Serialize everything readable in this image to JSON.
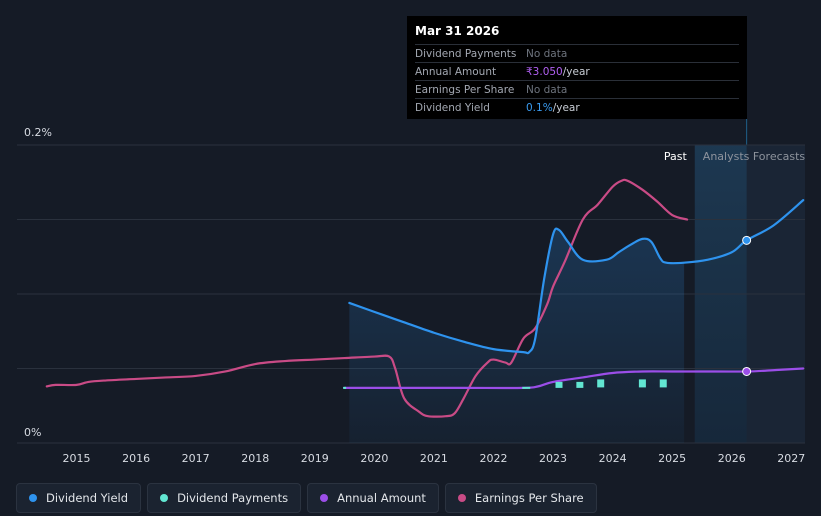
{
  "tooltip": {
    "date": "Mar 31 2026",
    "rows": [
      {
        "label": "Dividend Payments",
        "value": "No data",
        "unit": ""
      },
      {
        "label": "Annual Amount",
        "value": "₹3.050",
        "unit": "/year"
      },
      {
        "label": "Earnings Per Share",
        "value": "No data",
        "unit": ""
      },
      {
        "label": "Dividend Yield",
        "value": "0.1%",
        "unit": "/year"
      }
    ]
  },
  "legend": [
    {
      "label": "Dividend Yield",
      "color": "#2e93ee"
    },
    {
      "label": "Dividend Payments",
      "color": "#62e6d2"
    },
    {
      "label": "Annual Amount",
      "color": "#9b4ee8"
    },
    {
      "label": "Earnings Per Share",
      "color": "#c94b86"
    }
  ],
  "chart_data": {
    "type": "line",
    "title": "",
    "ylim": [
      0,
      0.2
    ],
    "y_tick_labels": [
      "0.2%",
      "0%"
    ],
    "xlim": [
      2014.0,
      2027.23
    ],
    "x_tick_labels": [
      "2015",
      "2016",
      "2017",
      "2018",
      "2019",
      "2020",
      "2021",
      "2022",
      "2023",
      "2024",
      "2025",
      "2026",
      "2027"
    ],
    "past_label": "Past",
    "forecast_label": "Analysts Forecasts",
    "past_end": 2025.38,
    "tooltip_x": 2026.25,
    "series": [
      {
        "name": "Dividend Yield",
        "color": "#2e93ee",
        "points": [
          [
            2019.58,
            0.094
          ],
          [
            2020.0,
            0.088
          ],
          [
            2020.5,
            0.081
          ],
          [
            2021.0,
            0.074
          ],
          [
            2021.5,
            0.068
          ],
          [
            2022.0,
            0.063
          ],
          [
            2022.5,
            0.061
          ],
          [
            2022.6,
            0.061
          ],
          [
            2022.7,
            0.07
          ],
          [
            2022.85,
            0.11
          ],
          [
            2023.0,
            0.14
          ],
          [
            2023.1,
            0.143
          ],
          [
            2023.25,
            0.135
          ],
          [
            2023.5,
            0.123
          ],
          [
            2023.9,
            0.123
          ],
          [
            2024.1,
            0.128
          ],
          [
            2024.3,
            0.133
          ],
          [
            2024.5,
            0.137
          ],
          [
            2024.65,
            0.135
          ],
          [
            2024.8,
            0.124
          ],
          [
            2024.9,
            0.121
          ],
          [
            2025.2,
            0.121
          ],
          [
            2025.6,
            0.123
          ],
          [
            2026.0,
            0.128
          ],
          [
            2026.25,
            0.136
          ],
          [
            2026.7,
            0.146
          ],
          [
            2027.2,
            0.163
          ]
        ],
        "forecast_from": 2025.38
      },
      {
        "name": "Annual Amount",
        "color": "#9b4ee8",
        "points": [
          [
            2019.5,
            0.037
          ],
          [
            2020.5,
            0.037
          ],
          [
            2021.5,
            0.037
          ],
          [
            2022.5,
            0.037
          ],
          [
            2022.75,
            0.038
          ],
          [
            2023.0,
            0.041
          ],
          [
            2023.5,
            0.044
          ],
          [
            2024.0,
            0.047
          ],
          [
            2024.5,
            0.048
          ],
          [
            2025.0,
            0.048
          ],
          [
            2025.5,
            0.048
          ],
          [
            2026.25,
            0.048
          ],
          [
            2026.75,
            0.049
          ],
          [
            2027.2,
            0.05
          ]
        ],
        "forecast_from": 2025.38
      },
      {
        "name": "Earnings Per Share",
        "color": "#c94b86",
        "points": [
          [
            2014.5,
            0.038
          ],
          [
            2014.65,
            0.039
          ],
          [
            2015.0,
            0.039
          ],
          [
            2015.2,
            0.041
          ],
          [
            2015.5,
            0.042
          ],
          [
            2016.0,
            0.043
          ],
          [
            2016.5,
            0.044
          ],
          [
            2017.0,
            0.045
          ],
          [
            2017.5,
            0.048
          ],
          [
            2018.0,
            0.053
          ],
          [
            2018.5,
            0.055
          ],
          [
            2019.0,
            0.056
          ],
          [
            2019.5,
            0.057
          ],
          [
            2020.0,
            0.058
          ],
          [
            2020.25,
            0.058
          ],
          [
            2020.35,
            0.05
          ],
          [
            2020.5,
            0.03
          ],
          [
            2020.75,
            0.021
          ],
          [
            2020.9,
            0.018
          ],
          [
            2021.2,
            0.018
          ],
          [
            2021.35,
            0.02
          ],
          [
            2021.5,
            0.03
          ],
          [
            2021.7,
            0.045
          ],
          [
            2021.9,
            0.054
          ],
          [
            2022.0,
            0.056
          ],
          [
            2022.2,
            0.054
          ],
          [
            2022.3,
            0.054
          ],
          [
            2022.5,
            0.07
          ],
          [
            2022.7,
            0.077
          ],
          [
            2022.9,
            0.093
          ],
          [
            2023.0,
            0.105
          ],
          [
            2023.2,
            0.122
          ],
          [
            2023.5,
            0.15
          ],
          [
            2023.75,
            0.16
          ],
          [
            2024.0,
            0.172
          ],
          [
            2024.15,
            0.176
          ],
          [
            2024.25,
            0.176
          ],
          [
            2024.5,
            0.17
          ],
          [
            2024.75,
            0.162
          ],
          [
            2025.0,
            0.153
          ],
          [
            2025.25,
            0.15
          ]
        ],
        "forecast_from": null
      }
    ],
    "dividend_payments": [
      {
        "x": 2019.5,
        "y": 0.037
      },
      {
        "x": 2022.55,
        "y": 0.037
      },
      {
        "x": 2023.1,
        "y": 0.039
      },
      {
        "x": 2023.45,
        "y": 0.039
      },
      {
        "x": 2023.8,
        "y": 0.04
      },
      {
        "x": 2024.5,
        "y": 0.04
      },
      {
        "x": 2024.85,
        "y": 0.04
      }
    ],
    "markers": [
      {
        "series": "Dividend Yield",
        "x": 2026.25,
        "y": 0.136
      },
      {
        "series": "Annual Amount",
        "x": 2026.25,
        "y": 0.048
      }
    ]
  }
}
